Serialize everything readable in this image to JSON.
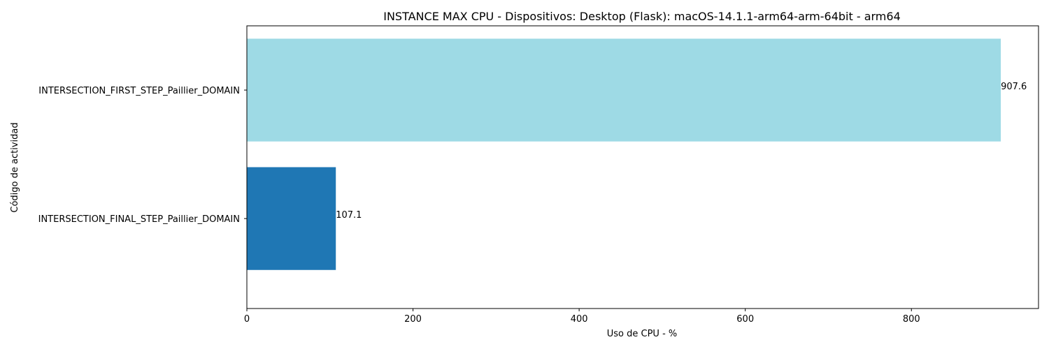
{
  "chart_data": {
    "type": "bar",
    "orientation": "horizontal",
    "title": "INSTANCE MAX CPU - Dispositivos: Desktop (Flask): macOS-14.1.1-arm64-arm-64bit - arm64",
    "xlabel": "Uso de CPU - %",
    "ylabel": "Código de actividad",
    "categories": [
      "INTERSECTION_FIRST_STEP_Paillier_DOMAIN",
      "INTERSECTION_FINAL_STEP_Paillier_DOMAIN"
    ],
    "values": [
      907.6,
      107.1
    ],
    "value_labels": [
      "907.6",
      "107.1"
    ],
    "colors": [
      "#9edae5",
      "#1f77b4"
    ],
    "xlim": [
      0,
      953
    ],
    "xticks": [
      0,
      200,
      400,
      600,
      800
    ],
    "xtick_labels": [
      "0",
      "200",
      "400",
      "600",
      "800"
    ],
    "grid": false,
    "legend": "none"
  }
}
